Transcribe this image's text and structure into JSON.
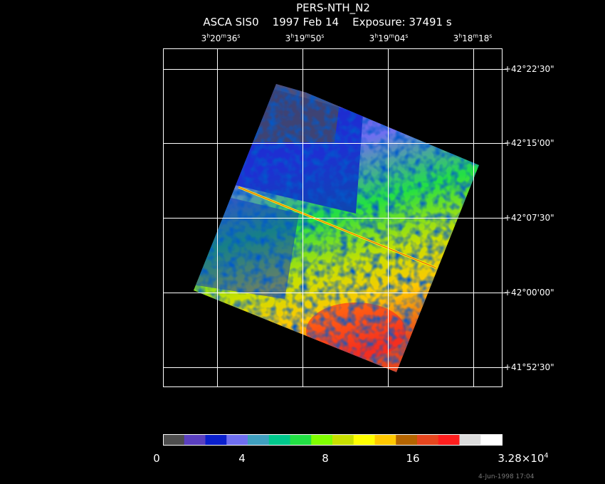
{
  "header": {
    "title": "PERS-NTH_N2",
    "subtitle": "ASCA SIS0    1997 Feb 14    Exposure: 37491 s"
  },
  "ra_labels": [
    [
      "3",
      "h",
      "20",
      "m",
      "36",
      "s"
    ],
    [
      "3",
      "h",
      "19",
      "m",
      "50",
      "s"
    ],
    [
      "3",
      "h",
      "19",
      "m",
      "04",
      "s"
    ],
    [
      "3",
      "h",
      "18",
      "m",
      "18",
      "s"
    ]
  ],
  "dec_labels": [
    "+42°22'30\"",
    "+42°15'00\"",
    "+42°07'30\"",
    "+42°00'00\"",
    "+41°52'30\""
  ],
  "colorbar": {
    "colors": [
      "#4d4d4d",
      "#5a3fbf",
      "#0a1fcc",
      "#6f6ff0",
      "#3f9fbf",
      "#00c88c",
      "#22e044",
      "#80ff00",
      "#c8e000",
      "#ffff00",
      "#ffc800",
      "#b46400",
      "#e6461e",
      "#ff1e1e",
      "#dcdcdc",
      "#ffffff"
    ],
    "labels": [
      [
        "0"
      ],
      [
        "4"
      ],
      [
        "8"
      ],
      [
        "16"
      ],
      [
        "3.28×10",
        "4"
      ]
    ]
  },
  "timestamp": "4-Jun-1998 17:04"
}
